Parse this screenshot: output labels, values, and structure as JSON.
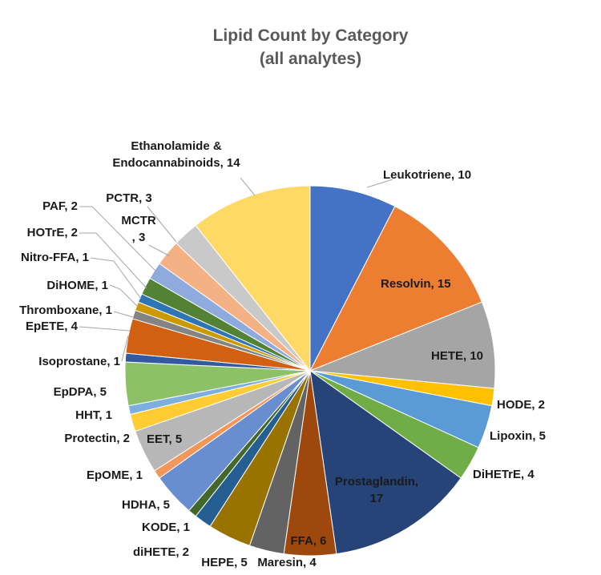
{
  "chart_data": {
    "type": "pie",
    "title": "Lipid Count by Category",
    "subtitle": "(all analytes)",
    "slices": [
      {
        "label": "Leukotriene",
        "value": 10,
        "color": "#4472c4"
      },
      {
        "label": "Resolvin",
        "value": 15,
        "color": "#ed7d31"
      },
      {
        "label": "HETE",
        "value": 10,
        "color": "#a5a5a5"
      },
      {
        "label": "HODE",
        "value": 2,
        "color": "#ffc000"
      },
      {
        "label": "Lipoxin",
        "value": 5,
        "color": "#5b9bd5"
      },
      {
        "label": "DiHETrE",
        "value": 4,
        "color": "#70ad47"
      },
      {
        "label": "Prostaglandin",
        "value": 17,
        "color": "#264478"
      },
      {
        "label": "FFA",
        "value": 6,
        "color": "#9e480e"
      },
      {
        "label": "Maresin",
        "value": 4,
        "color": "#636363"
      },
      {
        "label": "HEPE",
        "value": 5,
        "color": "#997300"
      },
      {
        "label": "diHETE",
        "value": 2,
        "color": "#255e91"
      },
      {
        "label": "KODE",
        "value": 1,
        "color": "#43682b"
      },
      {
        "label": "HDHA",
        "value": 5,
        "color": "#698ed0"
      },
      {
        "label": "EpOME",
        "value": 1,
        "color": "#f1975a"
      },
      {
        "label": "EET",
        "value": 5,
        "color": "#b7b7b7"
      },
      {
        "label": "Protectin",
        "value": 2,
        "color": "#ffcd33"
      },
      {
        "label": "HHT",
        "value": 1,
        "color": "#7cafdd"
      },
      {
        "label": "EpDPA",
        "value": 5,
        "color": "#8cc168"
      },
      {
        "label": "Isoprostane",
        "value": 1,
        "color": "#335aa1"
      },
      {
        "label": "EpETE",
        "value": 4,
        "color": "#d26012"
      },
      {
        "label": "Thromboxane",
        "value": 1,
        "color": "#848484"
      },
      {
        "label": "DiHOME",
        "value": 1,
        "color": "#cc9a00"
      },
      {
        "label": "Nitro-FFA",
        "value": 1,
        "color": "#2e75b6"
      },
      {
        "label": "HOTrE",
        "value": 2,
        "color": "#548235"
      },
      {
        "label": "PAF",
        "value": 2,
        "color": "#8faadc"
      },
      {
        "label": "MCTR",
        "value": 3,
        "color": "#f4b183"
      },
      {
        "label": "PCTR",
        "value": 3,
        "color": "#c9c9c9"
      },
      {
        "label": "Ethanolamide & Endocannabinoids",
        "value": 14,
        "color": "#ffd966"
      }
    ],
    "legend": "none",
    "data_labels": "category, value"
  }
}
